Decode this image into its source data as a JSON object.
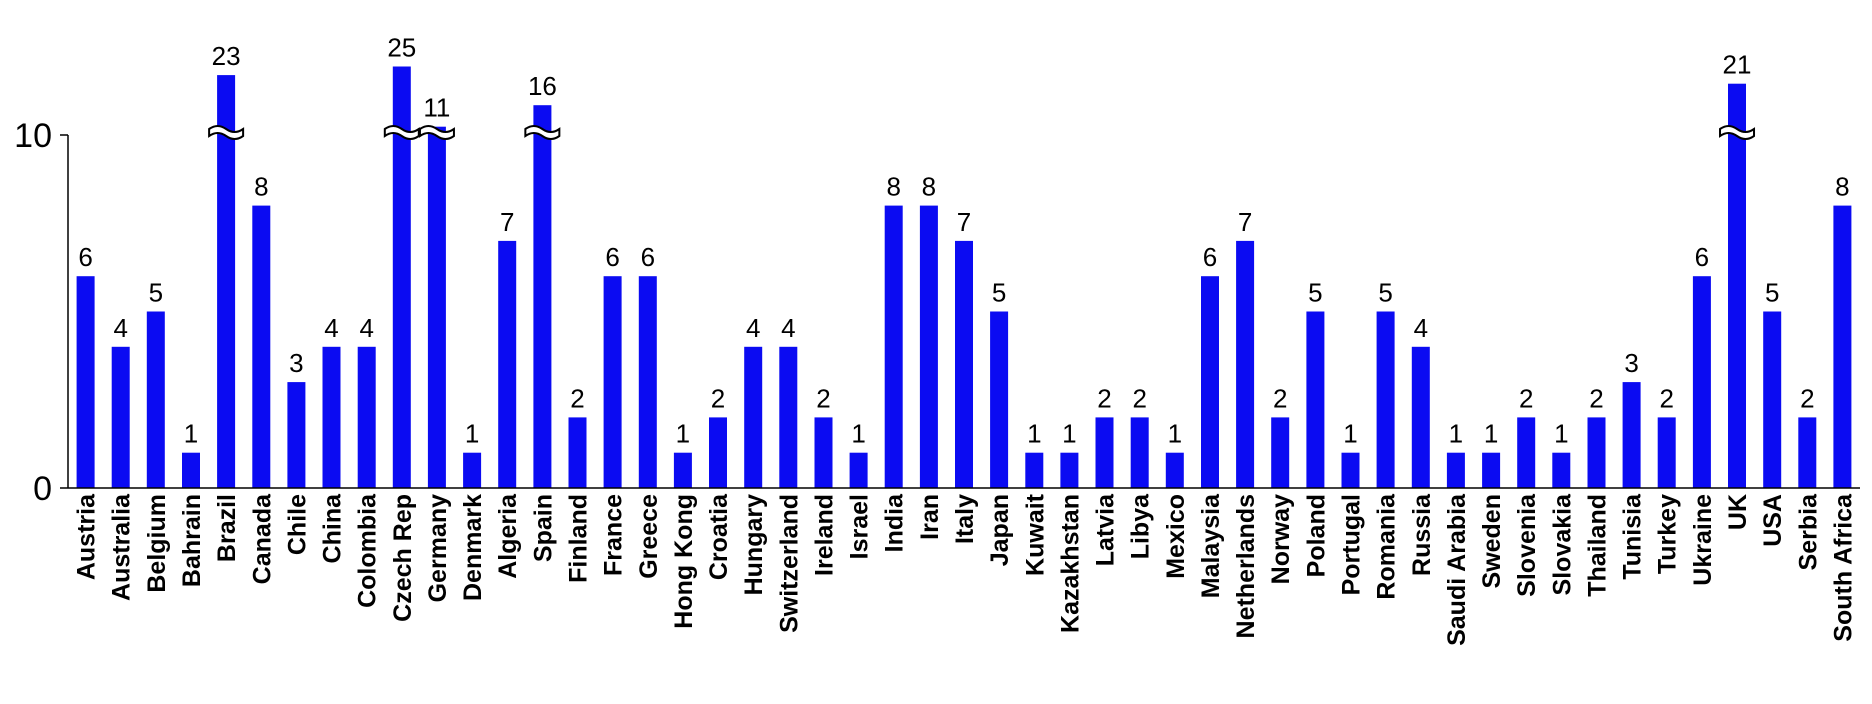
{
  "chart_data": {
    "type": "bar",
    "title": "",
    "xlabel": "",
    "ylabel": "",
    "ylim": [
      0,
      10
    ],
    "yticks": [
      0,
      10
    ],
    "axis_break_above": 10,
    "grid": false,
    "legend": "none",
    "bar_color": "#0b0bf2",
    "categories": [
      "Austria",
      "Australia",
      "Belgium",
      "Bahrain",
      "Brazil",
      "Canada",
      "Chile",
      "China",
      "Colombia",
      "Czech  Rep",
      "Germany",
      "Denmark",
      "Algeria",
      "Spain",
      "Finland",
      "France",
      "Greece",
      "Hong Kong",
      "Croatia",
      "Hungary",
      "Switzerland",
      "Ireland",
      "Israel",
      "India",
      "Iran",
      "Italy",
      "Japan",
      "Kuwait",
      "Kazakhstan",
      "Latvia",
      "Libya",
      "Mexico",
      "Malaysia",
      "Netherlands",
      "Norway",
      "Poland",
      "Portugal",
      "Romania",
      "Russia",
      "Saudi Arabia",
      "Sweden",
      "Slovenia",
      "Slovakia",
      "Thailand",
      "Tunisia",
      "Turkey",
      "Ukraine",
      "UK",
      "USA",
      "Serbia",
      "South  Africa"
    ],
    "values": [
      6,
      4,
      5,
      1,
      23,
      8,
      3,
      4,
      4,
      25,
      11,
      1,
      7,
      16,
      2,
      6,
      6,
      1,
      2,
      4,
      4,
      2,
      1,
      8,
      8,
      7,
      5,
      1,
      1,
      2,
      2,
      1,
      6,
      7,
      2,
      5,
      1,
      5,
      4,
      1,
      1,
      2,
      1,
      2,
      3,
      2,
      6,
      21,
      5,
      2,
      8
    ],
    "value_labels": [
      "6",
      "4",
      "5",
      "1",
      "23",
      "8",
      "3",
      "4",
      "4",
      "25",
      "11",
      "1",
      "7",
      "16",
      "2",
      "6",
      "6",
      "1",
      "2",
      "4",
      "4",
      "2",
      "1",
      "8",
      "8",
      "7",
      "5",
      "1",
      "1",
      "2",
      "2",
      "1",
      "6",
      "7",
      "2",
      "5",
      "1",
      "5",
      "4",
      "1",
      "1",
      "2",
      "1",
      "2",
      "3",
      "2",
      "6",
      "21",
      "5",
      "2",
      "8"
    ]
  }
}
